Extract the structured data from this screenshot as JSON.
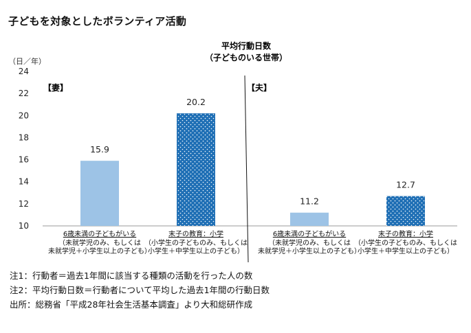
{
  "title": "子どもを対象としたボランティア活動",
  "chart_data": {
    "type": "bar",
    "title": "平均行動日数",
    "subtitle": "（子どものいる世帯）",
    "unit_label": "（日／年）",
    "ylim": [
      10,
      24
    ],
    "yticks": [
      10,
      12,
      14,
      16,
      18,
      20,
      22,
      24
    ],
    "grid": false,
    "panels": [
      {
        "label": "【妻】",
        "categories": [
          {
            "line1": "6歳未満の子どもがいる",
            "line2": "（未就学児のみ、もしくは",
            "line3": "未就学児＋小学生以上の子ども）",
            "value": 15.9,
            "value_label": "15.9",
            "color": "#9dc3e6",
            "pattern": "solid"
          },
          {
            "line1": "末子の教育：小学",
            "line2": "（小学生の子どものみ、もしくは",
            "line3": "小学生＋中学生以上の子ども）",
            "value": 20.2,
            "value_label": "20.2",
            "color": "#1f6fb5",
            "pattern": "dotted"
          }
        ]
      },
      {
        "label": "【夫】",
        "categories": [
          {
            "line1": "6歳未満の子どもがいる",
            "line2": "（未就学児のみ、もしくは",
            "line3": "未就学児＋小学生以上の子ども）",
            "value": 11.2,
            "value_label": "11.2",
            "color": "#9dc3e6",
            "pattern": "solid"
          },
          {
            "line1": "末子の教育：小学",
            "line2": "（小学生の子どものみ、もしくは",
            "line3": "小学生＋中学生以上の子ども）",
            "value": 12.7,
            "value_label": "12.7",
            "color": "#1f6fb5",
            "pattern": "dotted"
          }
        ]
      }
    ]
  },
  "notes": [
    "注1：行動者＝過去1年間に該当する種類の活動を行った人の数",
    "注2：平均行動日数＝行動者について平均した過去1年間の行動日数",
    "出所：総務省「平成28年社会生活基本調査」より大和総研作成"
  ]
}
